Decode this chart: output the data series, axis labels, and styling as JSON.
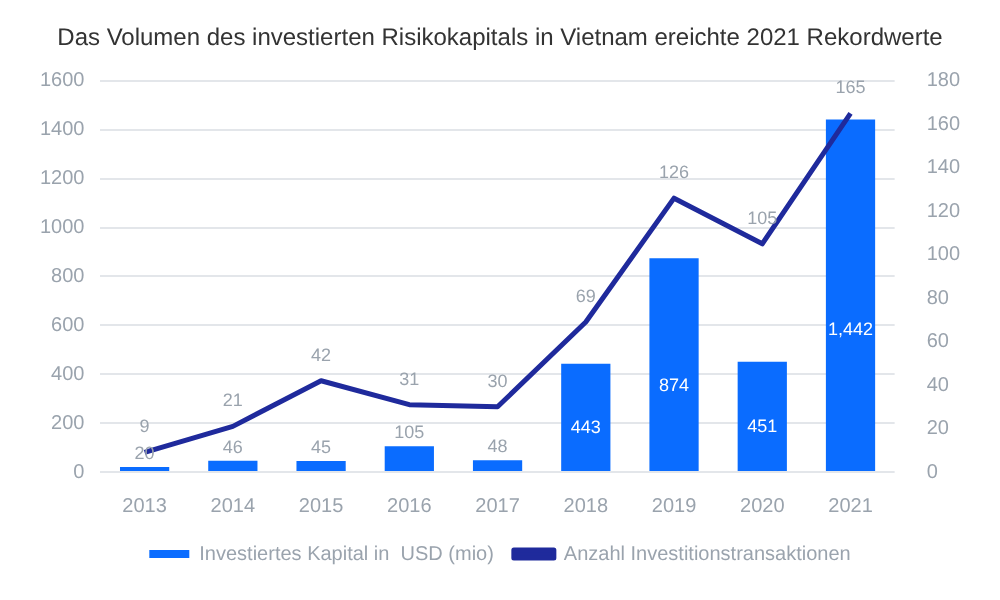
{
  "chart_data": {
    "type": "bar",
    "title": "Das Volumen des investierten Risikokapitals in Vietnam ereichte 2021 Rekordwerte",
    "categories": [
      "2013",
      "2014",
      "2015",
      "2016",
      "2017",
      "2018",
      "2019",
      "2020",
      "2021"
    ],
    "series": [
      {
        "name": "Investiertes Kapital in  USD (mio)",
        "color": "#0a6cff",
        "values": [
          20,
          46,
          45,
          105,
          48,
          443,
          874,
          451,
          1442
        ],
        "value_labels": [
          "20",
          "46",
          "45",
          "105",
          "48",
          "443",
          "874",
          "451",
          "1,442"
        ]
      },
      {
        "name": "Anzahl Investitionstransaktionen",
        "type": "line",
        "axis": "y2",
        "color": "#1f2a9c",
        "values": [
          9,
          21,
          42,
          31,
          30,
          69,
          126,
          105,
          165
        ],
        "value_labels": [
          "9",
          "21",
          "42",
          "31",
          "30",
          "69",
          "126",
          "105",
          "165"
        ]
      }
    ],
    "ylim": [
      0,
      1600
    ],
    "yticks": [
      0,
      200,
      400,
      600,
      800,
      1000,
      1200,
      1400,
      1600
    ],
    "y2lim": [
      0,
      180
    ],
    "y2ticks": [
      0,
      20,
      40,
      60,
      80,
      100,
      120,
      140,
      160,
      180
    ],
    "grid": "y",
    "legend": "bottom",
    "marker": "none",
    "line_style": "solid"
  }
}
